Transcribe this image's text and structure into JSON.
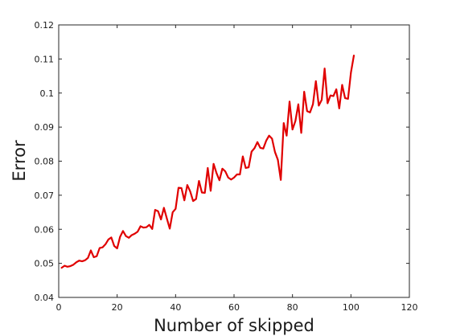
{
  "chart_data": {
    "type": "line",
    "title": "",
    "xlabel": "Number of skipped",
    "ylabel": "Error",
    "xlim": [
      0,
      120
    ],
    "ylim": [
      0.04,
      0.12
    ],
    "xticks": [
      "0",
      "20",
      "40",
      "60",
      "80",
      "100",
      "120"
    ],
    "yticks": [
      "0.04",
      "0.05",
      "0.06",
      "0.07",
      "0.08",
      "0.09",
      "0.1",
      "0.11",
      "0.12"
    ],
    "grid": false,
    "legend": "none",
    "series": [
      {
        "color": "#e00000",
        "x": [
          1,
          2,
          3,
          4,
          5,
          6,
          7,
          8,
          9,
          10,
          11,
          12,
          13,
          14,
          15,
          16,
          17,
          18,
          19,
          20,
          21,
          22,
          23,
          24,
          25,
          26,
          27,
          28,
          29,
          30,
          31,
          32,
          33,
          34,
          35,
          36,
          37,
          38,
          39,
          40,
          41,
          42,
          43,
          44,
          45,
          46,
          47,
          48,
          49,
          50,
          51,
          52,
          53,
          54,
          55,
          56,
          57,
          58,
          59,
          60,
          61,
          62,
          63,
          64,
          65,
          66,
          67,
          68,
          69,
          70,
          71,
          72,
          73,
          74,
          75,
          76,
          77,
          78,
          79,
          80,
          81,
          82,
          83,
          84,
          85,
          86,
          87,
          88,
          89,
          90,
          91,
          92,
          93,
          94,
          95,
          96,
          97,
          98,
          99,
          100,
          101
        ],
        "y": [
          0.0487,
          0.0493,
          0.049,
          0.0492,
          0.0496,
          0.0503,
          0.0508,
          0.0506,
          0.0509,
          0.0516,
          0.0538,
          0.0518,
          0.0521,
          0.0545,
          0.0547,
          0.0556,
          0.057,
          0.0576,
          0.0551,
          0.0544,
          0.0578,
          0.0595,
          0.058,
          0.0575,
          0.0583,
          0.0587,
          0.0593,
          0.0609,
          0.0605,
          0.0606,
          0.0613,
          0.0601,
          0.0657,
          0.0653,
          0.0629,
          0.0663,
          0.0632,
          0.0602,
          0.065,
          0.066,
          0.0722,
          0.0721,
          0.0685,
          0.073,
          0.0711,
          0.0683,
          0.0689,
          0.0742,
          0.0708,
          0.0707,
          0.078,
          0.0713,
          0.0792,
          0.0765,
          0.0744,
          0.0778,
          0.077,
          0.0752,
          0.0746,
          0.0752,
          0.0761,
          0.0761,
          0.0814,
          0.078,
          0.0782,
          0.0828,
          0.0838,
          0.0856,
          0.0839,
          0.0837,
          0.086,
          0.0875,
          0.0866,
          0.0827,
          0.0804,
          0.0745,
          0.0912,
          0.0875,
          0.0975,
          0.0893,
          0.0918,
          0.0967,
          0.0883,
          0.1004,
          0.0947,
          0.0943,
          0.0967,
          0.1035,
          0.0963,
          0.098,
          0.1072,
          0.097,
          0.0993,
          0.0991,
          0.1011,
          0.0955,
          0.1024,
          0.0985,
          0.0983,
          0.106,
          0.111
        ]
      }
    ]
  }
}
